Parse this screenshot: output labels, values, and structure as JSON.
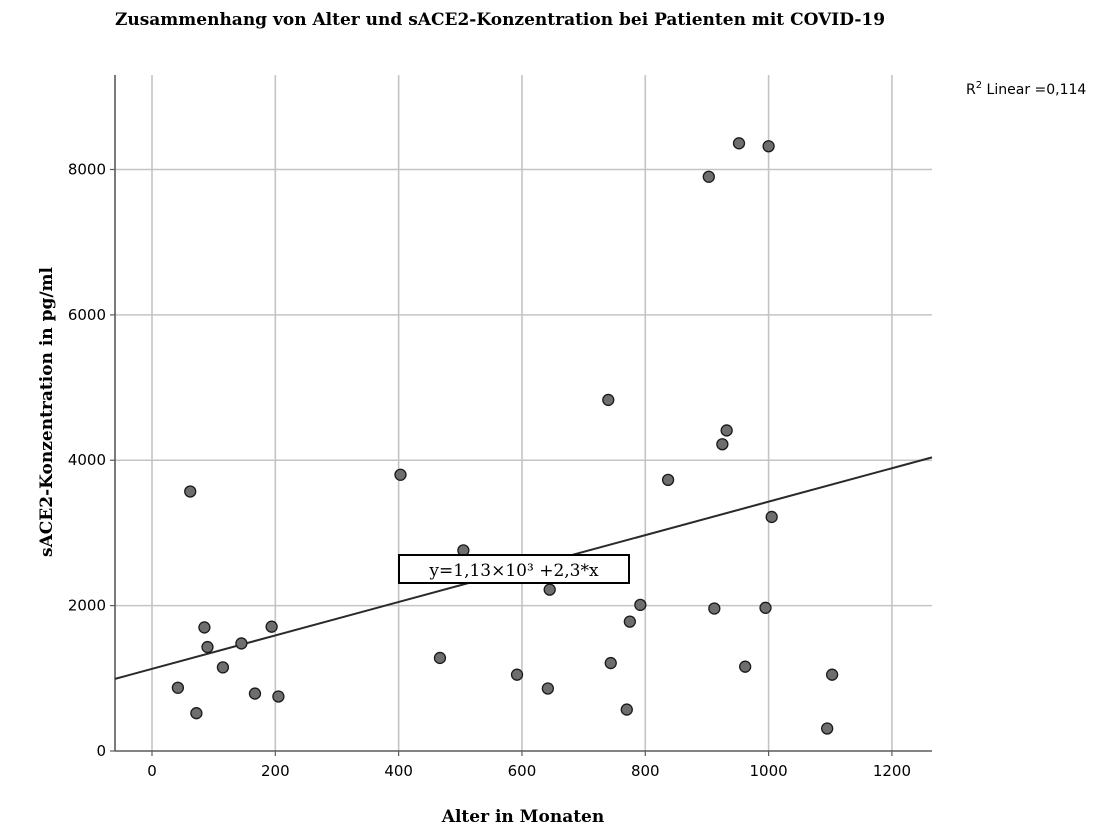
{
  "chart_data": {
    "type": "scatter",
    "title": "Zusammenhang von Alter und sACE2-Konzentration bei Patienten mit COVID-19",
    "xlabel": "Alter in Monaten",
    "ylabel": "sACE2-Konzentration in pg/ml",
    "xlim": [
      -60,
      1265
    ],
    "ylim": [
      0,
      9300
    ],
    "x_ticks": [
      0,
      200,
      400,
      600,
      800,
      1000,
      1200
    ],
    "y_ticks": [
      0,
      2000,
      4000,
      6000,
      8000
    ],
    "x_tick_labels": [
      "0",
      "200",
      "400",
      "600",
      "800",
      "1000",
      "1200"
    ],
    "y_tick_labels": [
      "0",
      "2000",
      "4000",
      "6000",
      "8000"
    ],
    "grid": true,
    "r2_label": {
      "prefix": "R",
      "superscript": "2",
      "suffix": " Linear =0,114"
    },
    "fit_line": {
      "intercept": 1130,
      "slope": 2.3,
      "equation_label": "y=1,13×10³ +2,3*x"
    },
    "points": [
      {
        "x": 42,
        "y": 870
      },
      {
        "x": 62,
        "y": 3570
      },
      {
        "x": 72,
        "y": 520
      },
      {
        "x": 85,
        "y": 1700
      },
      {
        "x": 90,
        "y": 1430
      },
      {
        "x": 115,
        "y": 1150
      },
      {
        "x": 145,
        "y": 1480
      },
      {
        "x": 167,
        "y": 790
      },
      {
        "x": 194,
        "y": 1710
      },
      {
        "x": 205,
        "y": 750
      },
      {
        "x": 403,
        "y": 3800
      },
      {
        "x": 467,
        "y": 1280
      },
      {
        "x": 505,
        "y": 2760
      },
      {
        "x": 592,
        "y": 1050
      },
      {
        "x": 642,
        "y": 860
      },
      {
        "x": 645,
        "y": 2220
      },
      {
        "x": 740,
        "y": 4830
      },
      {
        "x": 744,
        "y": 1210
      },
      {
        "x": 770,
        "y": 570
      },
      {
        "x": 775,
        "y": 1780
      },
      {
        "x": 792,
        "y": 2010
      },
      {
        "x": 837,
        "y": 3730
      },
      {
        "x": 903,
        "y": 7900
      },
      {
        "x": 912,
        "y": 1960
      },
      {
        "x": 925,
        "y": 4220
      },
      {
        "x": 932,
        "y": 4410
      },
      {
        "x": 952,
        "y": 8360
      },
      {
        "x": 962,
        "y": 1160
      },
      {
        "x": 995,
        "y": 1970
      },
      {
        "x": 1000,
        "y": 8320
      },
      {
        "x": 1005,
        "y": 3220
      },
      {
        "x": 1095,
        "y": 310
      },
      {
        "x": 1103,
        "y": 1050
      }
    ],
    "colors": {
      "point_fill": "#6e6e6e",
      "point_stroke": "#1a1a1a",
      "grid": "#c4c4c4",
      "axis": "#5a5a5a",
      "fit_line": "#2a2a2a"
    }
  }
}
